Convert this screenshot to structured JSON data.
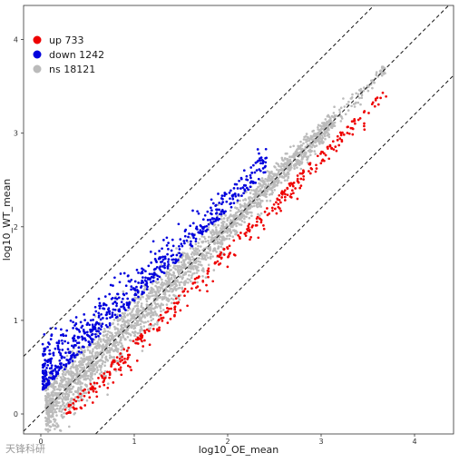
{
  "chart_data": {
    "type": "scatter",
    "xlabel": "log10_OE_mean",
    "ylabel": "log10_WT_mean",
    "xlim": [
      -0.2,
      4.4
    ],
    "ylim": [
      -0.1,
      4.3
    ],
    "x_ticks": [
      0,
      1,
      2,
      3,
      4
    ],
    "y_ticks": [
      0,
      1,
      2,
      3,
      4
    ],
    "grid": false,
    "legend_position": "top-left",
    "series": [
      {
        "name": "up 733",
        "color": "#ee0000",
        "count": 733,
        "description_points": [
          [
            0.2,
            0.05
          ],
          [
            0.5,
            0.25
          ],
          [
            0.8,
            0.45
          ],
          [
            1.0,
            0.62
          ],
          [
            1.3,
            0.85
          ],
          [
            1.6,
            1.1
          ],
          [
            2.0,
            1.45
          ],
          [
            2.2,
            1.75
          ],
          [
            2.6,
            2.2
          ],
          [
            3.0,
            2.6
          ],
          [
            3.2,
            2.75
          ],
          [
            3.7,
            3.4
          ]
        ]
      },
      {
        "name": "down 1242",
        "color": "#0000dd",
        "count": 1242,
        "description_points": [
          [
            0.05,
            0.1
          ],
          [
            0.1,
            0.4
          ],
          [
            0.2,
            0.65
          ],
          [
            0.3,
            0.95
          ],
          [
            0.4,
            1.15
          ],
          [
            0.6,
            1.4
          ],
          [
            0.8,
            1.65
          ],
          [
            1.0,
            1.75
          ],
          [
            1.3,
            2.0
          ],
          [
            1.5,
            2.2
          ],
          [
            1.9,
            2.4
          ],
          [
            2.4,
            2.85
          ]
        ]
      },
      {
        "name": "ns 18121",
        "color": "#bbbbbb",
        "count": 18121,
        "description_points": [
          [
            0.1,
            0.1
          ],
          [
            0.5,
            0.5
          ],
          [
            1.0,
            1.0
          ],
          [
            1.5,
            1.5
          ],
          [
            2.0,
            2.0
          ],
          [
            2.5,
            2.45
          ],
          [
            3.0,
            3.0
          ],
          [
            3.3,
            3.3
          ],
          [
            3.6,
            3.8
          ],
          [
            3.95,
            3.9
          ]
        ]
      }
    ],
    "reference_lines": [
      {
        "style": "dashed",
        "slope": 1,
        "intercept": 0
      },
      {
        "style": "dashed",
        "slope": 1,
        "intercept": 0.8
      },
      {
        "style": "dashed",
        "slope": 1,
        "intercept": -0.8
      }
    ]
  },
  "watermark": "天锋科研"
}
